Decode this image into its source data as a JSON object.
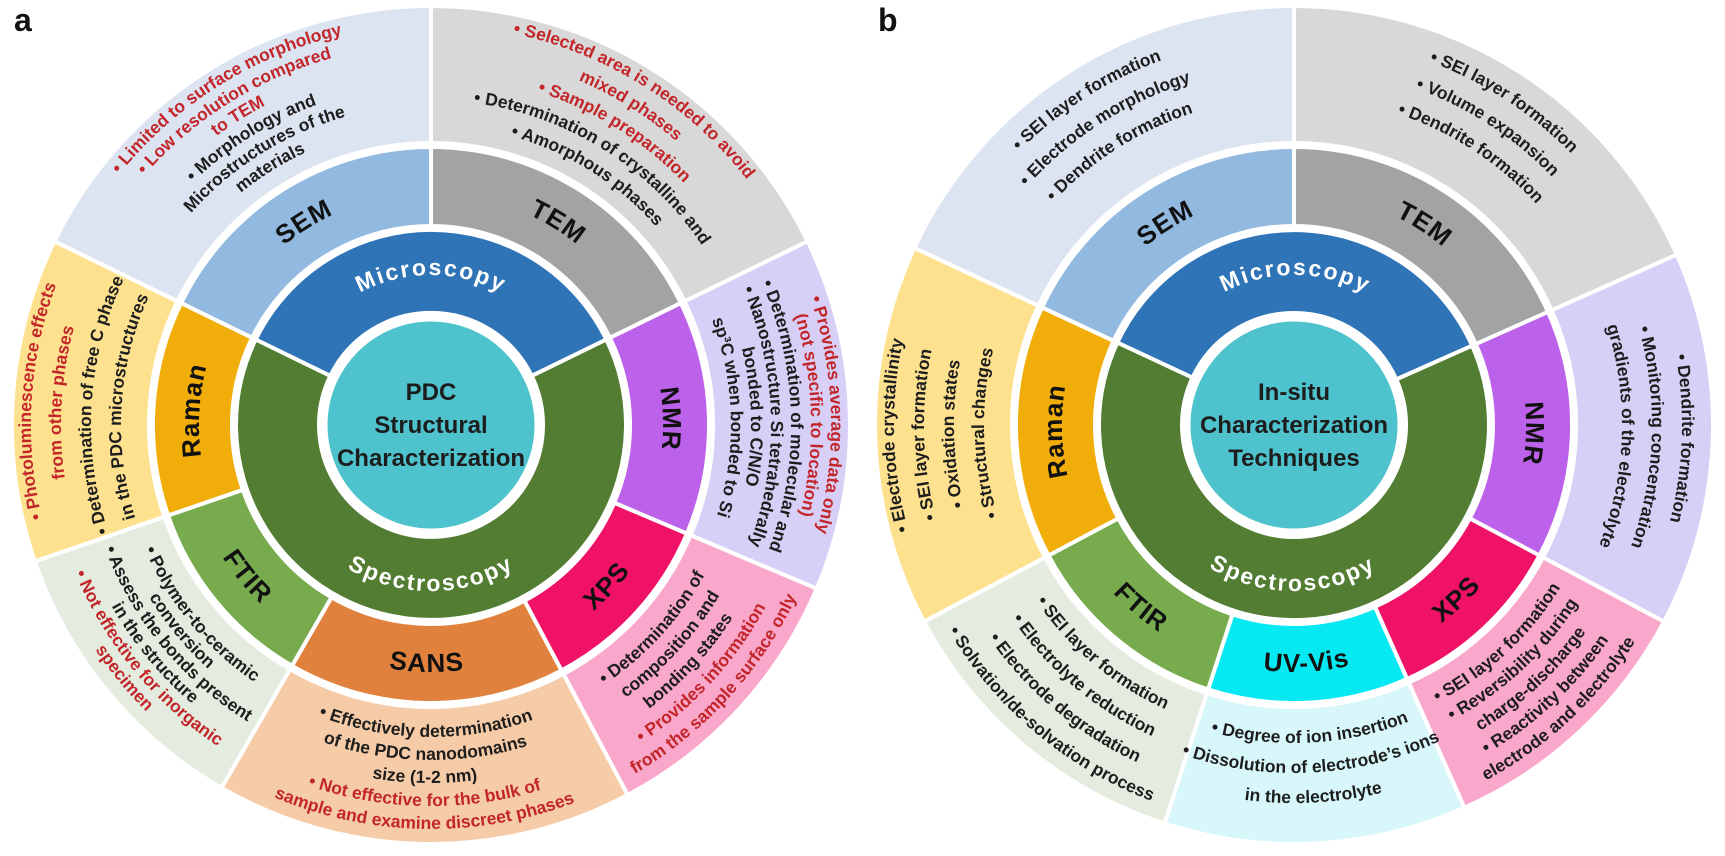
{
  "figure": {
    "background": "#ffffff"
  },
  "colors": {
    "text_black": "#1d1d1d",
    "text_red": "#c2262a",
    "label_black": "#111111",
    "category_text": "#ffffff",
    "gap_white": "#ffffff"
  },
  "panels": [
    {
      "label": "a",
      "center": {
        "title_lines": [
          "PDC",
          "Structural",
          "Characterization"
        ],
        "color": "#4ec3cd"
      },
      "categories": [
        {
          "name": "Microscopy",
          "start": 296,
          "end": 424,
          "dir": "cw",
          "color": "#2e74b6"
        },
        {
          "name": "Spectroscopy",
          "start": 64,
          "end": 296,
          "dir": "ccw",
          "color": "#527d32"
        }
      ],
      "sectors": [
        {
          "name": "SEM",
          "start": 296,
          "end": 360,
          "dir": "cw",
          "inner_color": "#92b9e0",
          "outer_color": "#dce4f2",
          "lines": [
            {
              "t": "• Limited to surface morphology",
              "c": "red"
            },
            {
              "t": "• Low resolution compared",
              "c": "red"
            },
            {
              "t": "to TEM",
              "c": "red"
            },
            {
              "t": "• Morphology and",
              "c": "black"
            },
            {
              "t": "Microstructures of the",
              "c": "black"
            },
            {
              "t": "materials",
              "c": "black"
            }
          ]
        },
        {
          "name": "TEM",
          "start": 0,
          "end": 64,
          "dir": "cw",
          "inner_color": "#a3a3a3",
          "outer_color": "#d8d8d8",
          "lines": [
            {
              "t": "• Selected area is needed to avoid",
              "c": "red"
            },
            {
              "t": "mixed phases",
              "c": "red"
            },
            {
              "t": "• Sample preparation",
              "c": "red"
            },
            {
              "t": "• Determination of crystalline and",
              "c": "black"
            },
            {
              "t": "• Amorphous phases",
              "c": "black"
            }
          ]
        },
        {
          "name": "NMR",
          "start": 64,
          "end": 113,
          "dir": "cw",
          "inner_color": "#bc61e9",
          "outer_color": "#d7cff5",
          "lines": [
            {
              "t": "• Provides average data only",
              "c": "red"
            },
            {
              "t": "(not specific to location)",
              "c": "red"
            },
            {
              "t": "• Determination of molecular and",
              "c": "black"
            },
            {
              "t": "• Nanostructure Si tetrahedrally",
              "c": "black"
            },
            {
              "t": "bonded to C/N/O",
              "c": "black"
            },
            {
              "t": "sp³C when bonded to Si",
              "c": "black"
            }
          ]
        },
        {
          "name": "XPS",
          "start": 113,
          "end": 152,
          "dir": "ccw",
          "inner_color": "#ef1267",
          "outer_color": "#f9a7ca",
          "lines": [
            {
              "t": "• Determination of",
              "c": "black"
            },
            {
              "t": "composition and",
              "c": "black"
            },
            {
              "t": "bonding states",
              "c": "black"
            },
            {
              "t": "• Provides information",
              "c": "red"
            },
            {
              "t": "from the sample surface only",
              "c": "red"
            }
          ]
        },
        {
          "name": "SANS",
          "start": 152,
          "end": 210,
          "dir": "ccw",
          "inner_color": "#e0823e",
          "outer_color": "#f6cba7",
          "lines": [
            {
              "t": "• Effectively determination",
              "c": "black"
            },
            {
              "t": "of the PDC nanodomains",
              "c": "black"
            },
            {
              "t": "size (1-2 nm)",
              "c": "black"
            },
            {
              "t": "• Not effective for the bulk of",
              "c": "red"
            },
            {
              "t": "sample and examine discreet phases",
              "c": "red"
            }
          ]
        },
        {
          "name": "FTIR",
          "start": 210,
          "end": 251,
          "dir": "ccw",
          "inner_color": "#77ab4d",
          "outer_color": "#e4ecdf",
          "lines": [
            {
              "t": "• Polymer-to-ceramic",
              "c": "black"
            },
            {
              "t": "conversion",
              "c": "black"
            },
            {
              "t": "• Assess the bonds present",
              "c": "black"
            },
            {
              "t": "in the structure",
              "c": "black"
            },
            {
              "t": "• Not effective for inorganic",
              "c": "red"
            },
            {
              "t": "specimen",
              "c": "red"
            }
          ]
        },
        {
          "name": "Raman",
          "start": 251,
          "end": 296,
          "dir": "cw",
          "inner_color": "#f1ad09",
          "outer_color": "#fee18f",
          "lines": [
            {
              "t": "• Photoluminescence effects",
              "c": "red"
            },
            {
              "t": "from other phases",
              "c": "red"
            },
            {
              "t": "• Determination of free C phase",
              "c": "black"
            },
            {
              "t": "in the PDC microstructures",
              "c": "black"
            }
          ]
        }
      ]
    },
    {
      "label": "b",
      "center": {
        "title_lines": [
          "In-situ",
          "Characterization",
          "Techniques"
        ],
        "color": "#4ec3cd"
      },
      "categories": [
        {
          "name": "Microscopy",
          "start": 295,
          "end": 426,
          "dir": "cw",
          "color": "#2e74b6"
        },
        {
          "name": "Spectroscopy",
          "start": 66,
          "end": 295,
          "dir": "ccw",
          "color": "#527d32"
        }
      ],
      "sectors": [
        {
          "name": "SEM",
          "start": 295,
          "end": 360,
          "dir": "cw",
          "inner_color": "#92b9e0",
          "outer_color": "#dce4f2",
          "lines": [
            {
              "t": "• SEI layer formation",
              "c": "black"
            },
            {
              "t": "• Electrode morphology",
              "c": "black"
            },
            {
              "t": "• Dendrite formation",
              "c": "black"
            }
          ]
        },
        {
          "name": "TEM",
          "start": 0,
          "end": 66,
          "dir": "cw",
          "inner_color": "#a3a3a3",
          "outer_color": "#d8d8d8",
          "lines": [
            {
              "t": "• SEI layer formation",
              "c": "black"
            },
            {
              "t": "• Volume expansion",
              "c": "black"
            },
            {
              "t": "• Dendrite formation",
              "c": "black"
            }
          ]
        },
        {
          "name": "NMR",
          "start": 66,
          "end": 118,
          "dir": "cw",
          "inner_color": "#bc61e9",
          "outer_color": "#d7cff5",
          "lines": [
            {
              "t": "• Dendrite formation",
              "c": "black"
            },
            {
              "t": "• Monitoring concentration",
              "c": "black"
            },
            {
              "t": "gradients of the electrolyte",
              "c": "black"
            }
          ]
        },
        {
          "name": "XPS",
          "start": 118,
          "end": 156,
          "dir": "ccw",
          "inner_color": "#ef1267",
          "outer_color": "#f9a7ca",
          "lines": [
            {
              "t": "• SEI layer formation",
              "c": "black"
            },
            {
              "t": "• Reversibility during",
              "c": "black"
            },
            {
              "t": "charge-discharge",
              "c": "black"
            },
            {
              "t": "• Reactivity between",
              "c": "black"
            },
            {
              "t": "electrode and electrolyte",
              "c": "black"
            }
          ]
        },
        {
          "name": "UV-Vis",
          "start": 156,
          "end": 198,
          "dir": "ccw",
          "inner_color": "#06e9f2",
          "outer_color": "#d8f7fa",
          "lines": [
            {
              "t": "• Degree of ion insertion",
              "c": "black"
            },
            {
              "t": "• Dissolution of electrode’s ions",
              "c": "black"
            },
            {
              "t": "in the electrolyte",
              "c": "black"
            }
          ]
        },
        {
          "name": "FTIR",
          "start": 198,
          "end": 242,
          "dir": "ccw",
          "inner_color": "#77ab4d",
          "outer_color": "#e4ecdf",
          "lines": [
            {
              "t": "• SEI layer formation",
              "c": "black"
            },
            {
              "t": "• Electrolyte reduction",
              "c": "black"
            },
            {
              "t": "• Electrode degradation",
              "c": "black"
            },
            {
              "t": "• Solvation/de-solvation process",
              "c": "black"
            }
          ]
        },
        {
          "name": "Raman",
          "start": 242,
          "end": 295,
          "dir": "cw",
          "inner_color": "#f1ad09",
          "outer_color": "#fee18f",
          "lines": [
            {
              "t": "• Electrode crystallinity",
              "c": "black"
            },
            {
              "t": "• SEI layer formation",
              "c": "black"
            },
            {
              "t": "• Oxidation states",
              "c": "black"
            },
            {
              "t": "• Structural changes",
              "c": "black"
            }
          ]
        }
      ]
    }
  ]
}
